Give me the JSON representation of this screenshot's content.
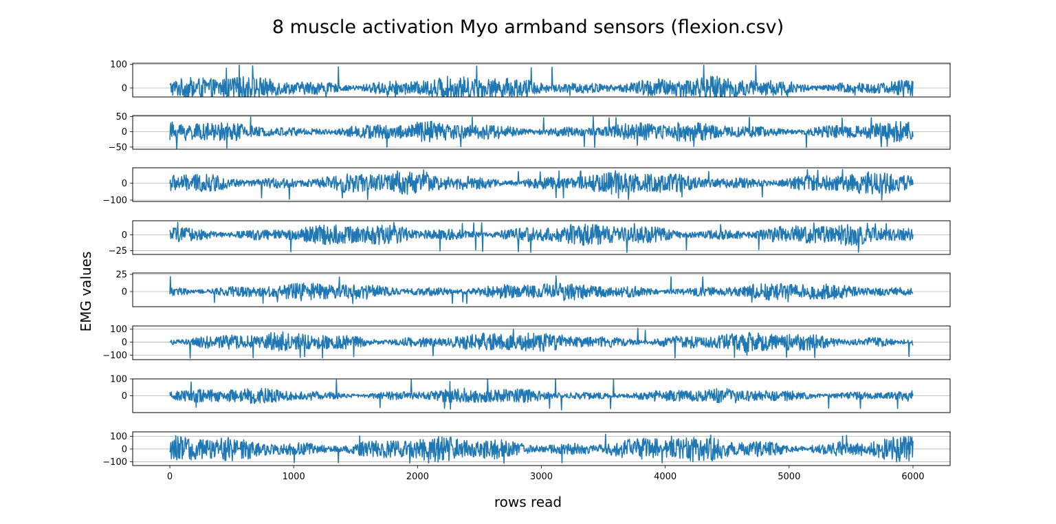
{
  "chart_data": {
    "type": "line",
    "title": "8 muscle activation Myo armband sensors (flexion.csv)",
    "xlabel": "rows read",
    "ylabel": "EMG values",
    "xlim": [
      -300,
      6300
    ],
    "x_ticks": [
      0,
      1000,
      2000,
      3000,
      4000,
      5000,
      6000
    ],
    "x_range": [
      0,
      6000
    ],
    "grid": "y-axis",
    "line_color": "#1f77b4",
    "subplots": [
      {
        "name": "",
        "ylim": [
          -38,
          105
        ],
        "y_ticks": [
          0,
          100
        ],
        "amplitude": 42,
        "peak_max": 100,
        "peak_min": -38
      },
      {
        "name": "",
        "ylim": [
          -57,
          53
        ],
        "y_ticks": [
          -50,
          0,
          50
        ],
        "amplitude": 28,
        "peak_max": 50,
        "peak_min": -55
      },
      {
        "name": "",
        "ylim": [
          -108,
          90
        ],
        "y_ticks": [
          -100,
          0
        ],
        "amplitude": 55,
        "peak_max": 80,
        "peak_min": -100
      },
      {
        "name": "",
        "ylim": [
          -31,
          22
        ],
        "y_ticks": [
          -25,
          0
        ],
        "amplitude": 14,
        "peak_max": 20,
        "peak_min": -28
      },
      {
        "name": "",
        "ylim": [
          -22,
          27
        ],
        "y_ticks": [
          0,
          25
        ],
        "amplitude": 11,
        "peak_max": 25,
        "peak_min": -18
      },
      {
        "name": "",
        "ylim": [
          -135,
          125
        ],
        "y_ticks": [
          -100,
          0,
          100
        ],
        "amplitude": 65,
        "peak_max": 110,
        "peak_min": -125
      },
      {
        "name": "",
        "ylim": [
          -100,
          100
        ],
        "y_ticks": [
          0,
          100
        ],
        "amplitude": 38,
        "peak_max": 100,
        "peak_min": -85
      },
      {
        "name": "",
        "ylim": [
          -130,
          135
        ],
        "y_ticks": [
          -100,
          0,
          100
        ],
        "amplitude": 85,
        "peak_max": 125,
        "peak_min": -115
      }
    ]
  }
}
